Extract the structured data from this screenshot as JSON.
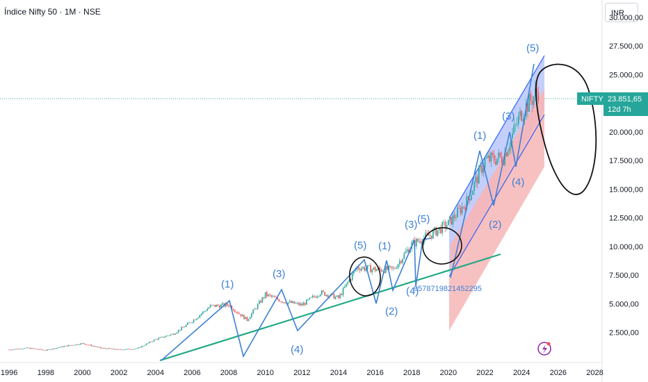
{
  "header": {
    "title": "Índice Nifty 50 · 1M · NSE",
    "currency": "INR"
  },
  "price_tag": {
    "symbol": "NIFTY",
    "price": "23.851,65",
    "countdown": "12d 7h",
    "color": "#26a69a"
  },
  "colors": {
    "up": "#26a69a",
    "down": "#ef5350",
    "drawing": "#2962ff",
    "wave": "#3d7fd6",
    "trend": "#22a884",
    "channel_upper_fill": "#b8c6fa",
    "channel_lower_fill": "#f7b6b6",
    "marker": "#8e24aa"
  },
  "annotations": {
    "wave_labels": [
      "(1)",
      "(3)",
      "(4)",
      "(5)",
      "(1)",
      "(2)",
      "(3)",
      "(4)",
      "(5)",
      "(1)",
      "(2)",
      "(3)",
      "(4)",
      "(5)"
    ],
    "stray_text": "9578719821452295",
    "marker_icon": "flash-icon"
  },
  "chart_data": {
    "type": "candlestick",
    "title": "Índice Nifty 50 · 1M · NSE",
    "series": [
      {
        "name": "NIFTY",
        "x": [
          1996,
          1997,
          1998,
          1999,
          2000,
          2001,
          2002,
          2003,
          2004,
          2005,
          2006,
          2007,
          2008,
          2009,
          2010,
          2011,
          2012,
          2013,
          2014,
          2015,
          2016,
          2017,
          2018,
          2019,
          2020,
          2021,
          2022,
          2023,
          2024,
          2025
        ],
        "values": [
          1000,
          1150,
          950,
          1300,
          1550,
          1150,
          1000,
          1100,
          1900,
          2400,
          3500,
          4800,
          4900,
          3600,
          5800,
          5200,
          4900,
          6000,
          5500,
          8200,
          8000,
          8000,
          10200,
          11000,
          12000,
          13900,
          17500,
          17800,
          21700,
          23800
        ]
      }
    ],
    "last_value": 23851.65,
    "y_ticks": [
      "2.500,00",
      "5.000,00",
      "7.500,00",
      "10.000,00",
      "12.500,00",
      "15.000,00",
      "17.500,00",
      "20.000,00",
      "25.000,00",
      "27.500,00",
      "30.000,00"
    ],
    "x_ticks": [
      "1996",
      "1998",
      "2000",
      "2002",
      "2004",
      "2006",
      "2008",
      "2010",
      "2012",
      "2014",
      "2016",
      "2018",
      "2020",
      "2022",
      "2024",
      "2026",
      "2028"
    ],
    "xlim": [
      1995.5,
      2028.4
    ],
    "ylim": [
      0,
      31500
    ],
    "grid": false,
    "legend": "none"
  }
}
